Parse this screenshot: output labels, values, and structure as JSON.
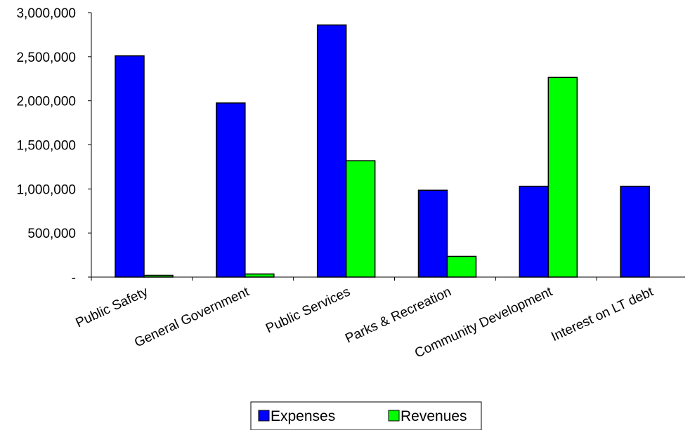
{
  "chart_data": {
    "type": "bar",
    "title": "",
    "xlabel": "",
    "ylabel": "",
    "categories": [
      "Public Safety",
      "General Government",
      "Public Services",
      "Parks & Recreation",
      "Community Development",
      "Interest on LT debt"
    ],
    "series": [
      {
        "name": "Expenses",
        "color": "#0000ff",
        "values": [
          2510000,
          1975000,
          2860000,
          985000,
          1030000,
          1030000
        ]
      },
      {
        "name": "Revenues",
        "color": "#00ff00",
        "values": [
          20000,
          35000,
          1320000,
          235000,
          2265000,
          0
        ]
      }
    ],
    "ylim": [
      0,
      3000000
    ],
    "yticks": [
      0,
      500000,
      1000000,
      1500000,
      2000000,
      2500000,
      3000000
    ],
    "ytick_labels": [
      "-",
      "500,000",
      "1,000,000",
      "1,500,000",
      "2,000,000",
      "2,500,000",
      "3,000,000"
    ],
    "grid": false,
    "legend_position": "bottom"
  }
}
